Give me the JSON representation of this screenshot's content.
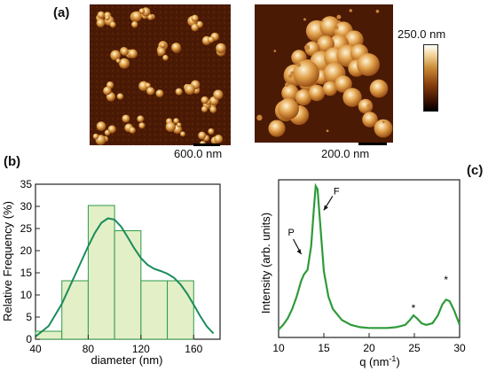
{
  "panels": {
    "a": "(a)",
    "b": "(b)",
    "c": "(c)"
  },
  "afm": {
    "left_scale": "600.0 nm",
    "right_scale": "200.0 nm",
    "colorbar_label": "250.0 nm",
    "colors": {
      "dark": "#2b0a02",
      "mid": "#b86a1a",
      "light": "#f5dca0",
      "top": "#ffffff"
    }
  },
  "chart_data": [
    {
      "type": "bar",
      "xlabel": "diameter (nm)",
      "ylabel": "Relative Frequency (%)",
      "xlim": [
        40,
        180
      ],
      "ylim": [
        0,
        35
      ],
      "xticks": [
        40,
        80,
        120,
        160
      ],
      "yticks": [
        0,
        5,
        10,
        15,
        20,
        25,
        30,
        35
      ],
      "bins": [
        {
          "from": 40,
          "to": 60,
          "value": 1.8
        },
        {
          "from": 60,
          "to": 80,
          "value": 13.2
        },
        {
          "from": 80,
          "to": 100,
          "value": 30.2
        },
        {
          "from": 100,
          "to": 120,
          "value": 24.5
        },
        {
          "from": 120,
          "to": 140,
          "value": 13.2
        },
        {
          "from": 140,
          "to": 160,
          "value": 13.2
        }
      ],
      "fit_curve": {
        "x": [
          40,
          50,
          60,
          70,
          80,
          85,
          90,
          95,
          100,
          105,
          110,
          115,
          120,
          125,
          130,
          135,
          140,
          145,
          150,
          155,
          160,
          165,
          170,
          175
        ],
        "y": [
          0.6,
          3,
          8,
          14.5,
          21,
          24,
          26.3,
          27.3,
          27,
          25.4,
          23,
          20.5,
          18.3,
          16.8,
          15.9,
          15.4,
          14.8,
          13.9,
          12.4,
          10.3,
          7.8,
          5.2,
          2.9,
          1.3
        ]
      },
      "colors": {
        "bar_fill": "#e3efc6",
        "bar_edge": "#2e9b4b",
        "curve": "#1a8c5a"
      }
    },
    {
      "type": "line",
      "xlabel": "q (nm",
      "xlabel_sup": "-1",
      "xlabel_close": ")",
      "ylabel": "Intensity (arb. units)",
      "xlim": [
        10,
        30
      ],
      "ylim": [
        0,
        100
      ],
      "xticks": [
        10,
        15,
        20,
        25,
        30
      ],
      "annotations": [
        {
          "label": "P",
          "x": 12.8,
          "y": 50
        },
        {
          "label": "F",
          "x": 14.3,
          "y": 93
        },
        {
          "label": "*",
          "x": 24.9,
          "y": 14
        },
        {
          "label": "*",
          "x": 28.5,
          "y": 32
        }
      ],
      "series": [
        {
          "x": [
            10,
            10.5,
            11,
            11.5,
            12,
            12.5,
            12.8,
            13.2,
            13.6,
            13.9,
            14.1,
            14.3,
            14.6,
            15,
            15.5,
            16,
            17,
            18,
            19,
            20,
            21,
            22,
            23,
            24,
            24.5,
            24.9,
            25.3,
            25.8,
            26.3,
            27,
            27.6,
            28.1,
            28.5,
            28.9,
            29.4,
            29.8,
            30
          ],
          "y": [
            5,
            8,
            12,
            18,
            26,
            36,
            40,
            43,
            58,
            82,
            96,
            94,
            72,
            42,
            26,
            18,
            11,
            8,
            6.5,
            6,
            6,
            6,
            6.5,
            8,
            11,
            14,
            12,
            9,
            8,
            9,
            14,
            21,
            24,
            23,
            17,
            11,
            8
          ]
        }
      ],
      "colors": {
        "line": "#2e9b3a"
      }
    }
  ]
}
